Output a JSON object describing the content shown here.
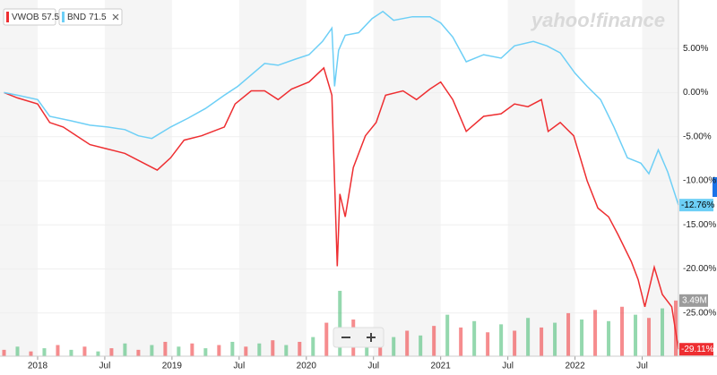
{
  "chart_data": {
    "type": "line",
    "logo": "yahoo!finance",
    "xlim": [
      2017.72,
      2022.77
    ],
    "xticks": [
      {
        "value": 2018,
        "label": "2018"
      },
      {
        "value": 2018.5,
        "label": "Jul"
      },
      {
        "value": 2019,
        "label": "2019"
      },
      {
        "value": 2019.5,
        "label": "Jul"
      },
      {
        "value": 2020,
        "label": "2020"
      },
      {
        "value": 2020.5,
        "label": "Jul"
      },
      {
        "value": 2021,
        "label": "2021"
      },
      {
        "value": 2021.5,
        "label": "Jul"
      },
      {
        "value": 2022,
        "label": "2022"
      },
      {
        "value": 2022.5,
        "label": "Jul"
      }
    ],
    "ylim": [
      -29.9,
      10.5
    ],
    "yticks": [
      {
        "value": 5,
        "label": "5.00%"
      },
      {
        "value": 0,
        "label": "0.00%"
      },
      {
        "value": -5,
        "label": "-5.00%"
      },
      {
        "value": -10,
        "label": "-10.00%"
      },
      {
        "value": -15,
        "label": "-15.00%"
      },
      {
        "value": -20,
        "label": "-20.00%"
      },
      {
        "value": -25,
        "label": "-25.00%"
      }
    ],
    "grid": true,
    "series": [
      {
        "name": "VWOB",
        "price": 57.53,
        "color": "#ee2e31",
        "last_value_label": "-29.11%",
        "x": [
          2017.75,
          2017.85,
          2018.0,
          2018.09,
          2018.19,
          2018.29,
          2018.39,
          2018.52,
          2018.65,
          2018.79,
          2018.89,
          2018.99,
          2019.09,
          2019.22,
          2019.39,
          2019.47,
          2019.59,
          2019.69,
          2019.79,
          2019.89,
          2020.02,
          2020.13,
          2020.19,
          2020.23,
          2020.25,
          2020.29,
          2020.35,
          2020.44,
          2020.52,
          2020.59,
          2020.72,
          2020.82,
          2020.92,
          2021.0,
          2021.09,
          2021.19,
          2021.32,
          2021.45,
          2021.55,
          2021.65,
          2021.75,
          2021.8,
          2021.89,
          2021.99,
          2022.09,
          2022.17,
          2022.25,
          2022.32,
          2022.42,
          2022.47,
          2022.52,
          2022.59,
          2022.65,
          2022.72,
          2022.77
        ],
        "values": [
          0,
          -0.6,
          -1.3,
          -3.4,
          -3.9,
          -4.9,
          -5.9,
          -6.4,
          -6.9,
          -8.0,
          -8.8,
          -7.4,
          -5.4,
          -4.9,
          -3.9,
          -1.3,
          0.2,
          0.2,
          -0.8,
          0.4,
          1.2,
          2.8,
          -0.3,
          -19.7,
          -11.5,
          -14.1,
          -8.5,
          -4.9,
          -3.4,
          -0.3,
          0.2,
          -0.8,
          0.4,
          1.2,
          -0.8,
          -4.4,
          -2.7,
          -2.4,
          -1.3,
          -1.6,
          -0.8,
          -4.4,
          -3.4,
          -4.9,
          -10.0,
          -13.1,
          -14.1,
          -16.1,
          -19.2,
          -21.2,
          -24.3,
          -19.8,
          -22.9,
          -24.3,
          -29.11
        ]
      },
      {
        "name": "BND",
        "price": 71.5,
        "color": "#6dcff6",
        "last_value_label": "-12.76%",
        "x": [
          2017.75,
          2017.85,
          2018.0,
          2018.09,
          2018.25,
          2018.39,
          2018.52,
          2018.65,
          2018.75,
          2018.85,
          2018.99,
          2019.12,
          2019.25,
          2019.39,
          2019.49,
          2019.59,
          2019.69,
          2019.79,
          2019.92,
          2020.02,
          2020.12,
          2020.19,
          2020.21,
          2020.24,
          2020.29,
          2020.39,
          2020.49,
          2020.57,
          2020.65,
          2020.79,
          2020.92,
          2021.0,
          2021.09,
          2021.19,
          2021.32,
          2021.45,
          2021.55,
          2021.69,
          2021.79,
          2021.89,
          2022.0,
          2022.09,
          2022.19,
          2022.29,
          2022.39,
          2022.49,
          2022.55,
          2022.62,
          2022.69,
          2022.77
        ],
        "values": [
          0,
          -0.3,
          -0.8,
          -2.7,
          -3.2,
          -3.7,
          -3.9,
          -4.2,
          -4.9,
          -5.2,
          -3.9,
          -2.9,
          -1.8,
          -0.3,
          0.7,
          2.0,
          3.3,
          3.1,
          3.8,
          4.3,
          5.8,
          7.3,
          0.7,
          4.8,
          6.5,
          6.8,
          8.4,
          9.2,
          8.2,
          8.6,
          8.6,
          7.9,
          6.3,
          3.5,
          4.3,
          3.9,
          5.3,
          5.8,
          5.3,
          4.5,
          2.2,
          0.7,
          -0.8,
          -3.9,
          -7.4,
          -8.0,
          -9.2,
          -6.5,
          -9.0,
          -12.76
        ]
      }
    ],
    "volume": {
      "ylim": [
        0,
        5.5
      ],
      "colors": [
        "#ee2e31",
        "#3db86b"
      ],
      "last_value_label": "3.49M",
      "x": [
        2017.75,
        2017.85,
        2017.95,
        2018.05,
        2018.15,
        2018.25,
        2018.35,
        2018.45,
        2018.55,
        2018.65,
        2018.75,
        2018.85,
        2018.95,
        2019.05,
        2019.15,
        2019.25,
        2019.35,
        2019.45,
        2019.55,
        2019.65,
        2019.75,
        2019.85,
        2019.95,
        2020.05,
        2020.15,
        2020.25,
        2020.35,
        2020.45,
        2020.55,
        2020.65,
        2020.75,
        2020.85,
        2020.95,
        2021.05,
        2021.15,
        2021.25,
        2021.35,
        2021.45,
        2021.55,
        2021.65,
        2021.75,
        2021.85,
        2021.95,
        2022.05,
        2022.15,
        2022.25,
        2022.35,
        2022.45,
        2022.55,
        2022.65,
        2022.75
      ],
      "values": [
        0.4,
        0.6,
        0.3,
        0.5,
        0.7,
        0.4,
        0.6,
        0.3,
        0.5,
        0.8,
        0.4,
        0.7,
        0.9,
        0.6,
        0.8,
        0.5,
        0.7,
        0.9,
        0.6,
        0.8,
        1.0,
        0.7,
        0.9,
        1.2,
        2.1,
        4.1,
        2.3,
        1.4,
        1.8,
        1.2,
        1.6,
        1.3,
        1.9,
        2.6,
        1.8,
        2.2,
        1.5,
        2.0,
        1.6,
        2.4,
        1.8,
        2.1,
        2.7,
        2.3,
        2.9,
        2.2,
        3.1,
        2.6,
        2.4,
        3.0,
        3.49
      ]
    }
  }
}
